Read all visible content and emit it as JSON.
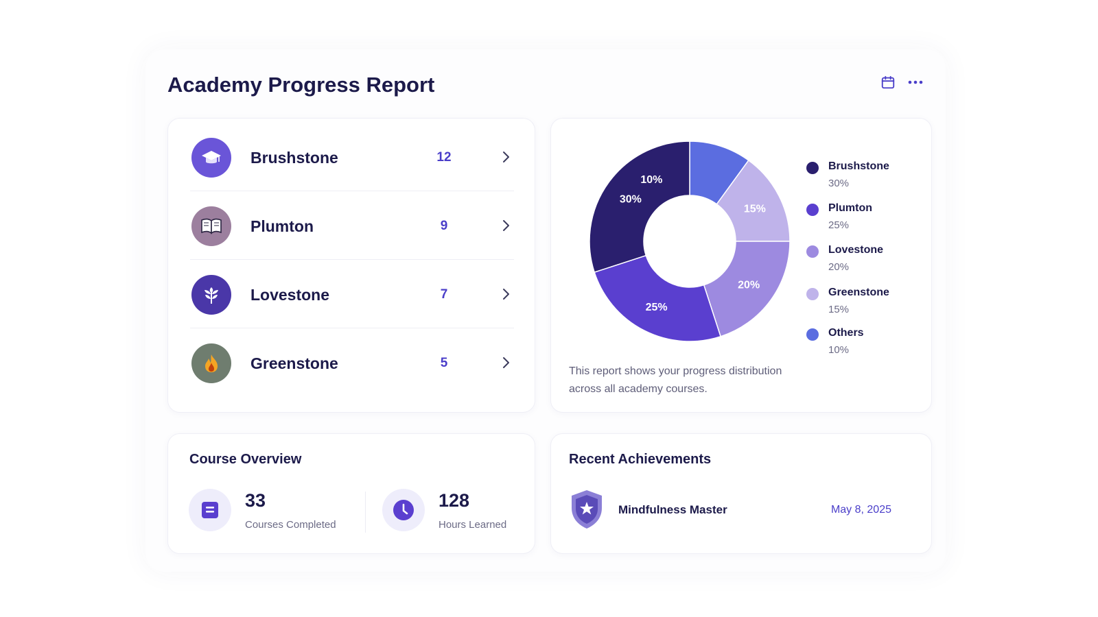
{
  "report": {
    "title": "Academy Progress Report"
  },
  "header_actions": {
    "calendar_icon": "calendar-icon",
    "more_icon": "more-horizontal-icon"
  },
  "courses": [
    {
      "name": "Brushstone",
      "count": "12",
      "icon": "graduation-cap-icon",
      "color": "#6a55d8"
    },
    {
      "name": "Plumton",
      "count": "9",
      "icon": "open-book-icon",
      "color": "#9c7f9e"
    },
    {
      "name": "Lovestone",
      "count": "7",
      "icon": "sprout-icon",
      "color": "#4a37a8"
    },
    {
      "name": "Greenstone",
      "count": "5",
      "icon": "flame-icon",
      "color": "#6f7d6f"
    }
  ],
  "chart_data": {
    "type": "pie",
    "variant": "donut",
    "categories": [
      "Brushstone",
      "Plumton",
      "Lovestone",
      "Greenstone",
      "Others"
    ],
    "values": [
      30,
      25,
      20,
      15,
      10
    ],
    "labels": [
      "30%",
      "25%",
      "20%",
      "15%",
      "10%"
    ],
    "colors": [
      "#2a1f6e",
      "#5a3fcf",
      "#9d8ae0",
      "#bfb3ea",
      "#5b6de0"
    ],
    "legend_position": "right",
    "note": "This report shows your progress distribution across all academy courses."
  },
  "overview": {
    "title": "Course Overview",
    "stats": [
      {
        "value": "33",
        "label": "Courses Completed",
        "icon": "book-icon"
      },
      {
        "value": "128",
        "label": "Hours Learned",
        "icon": "clock-icon"
      }
    ]
  },
  "achievements": {
    "title": "Recent Achievements",
    "items": [
      {
        "name": "Mindfulness Master",
        "date": "May 8, 2025",
        "icon": "shield-star-icon"
      }
    ]
  }
}
